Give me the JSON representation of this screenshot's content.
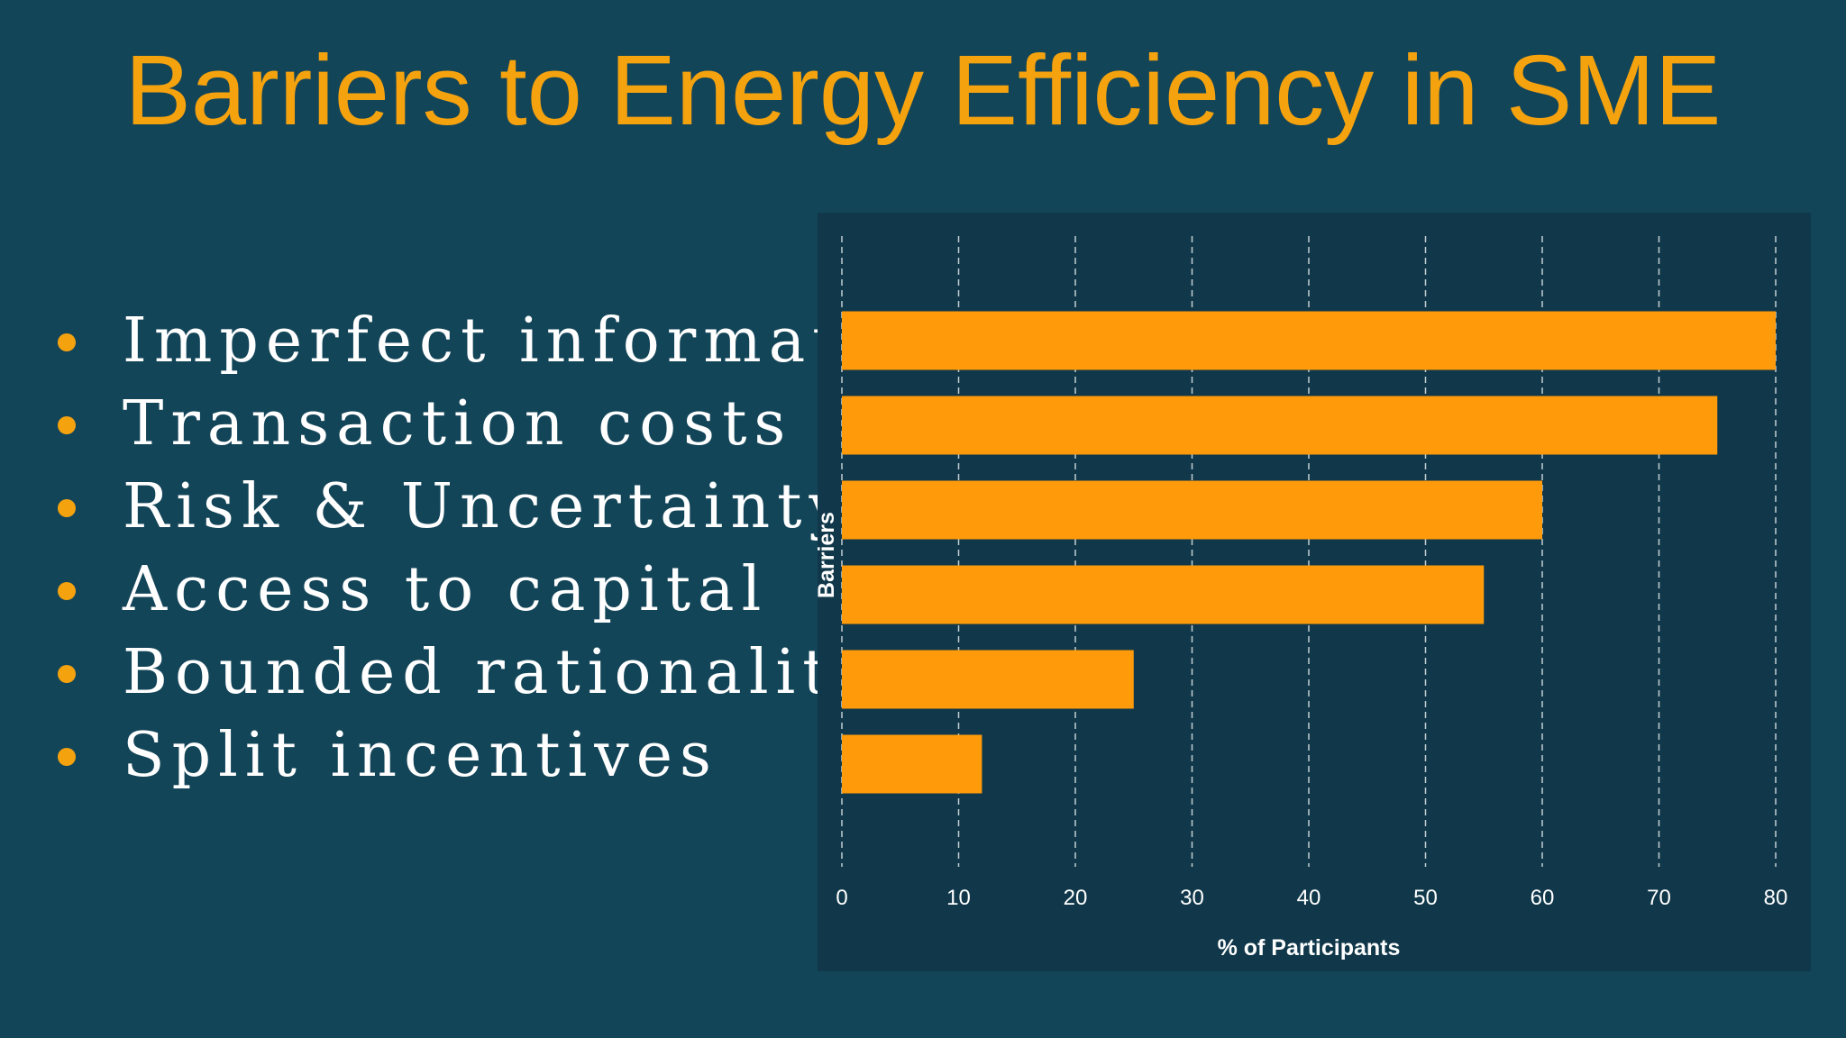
{
  "slide": {
    "title": "Barriers to Energy Efficiency in SME",
    "bullets": [
      "Imperfect information",
      "Transaction costs",
      "Risk & Uncertainty",
      "Access to capital",
      "Bounded rationality",
      "Split incentives"
    ]
  },
  "colors": {
    "background": "#134558",
    "chart_background": "#10384a",
    "accent": "#f5a20f",
    "bar": "#ff9a0a",
    "text": "#ffffff"
  },
  "chart_data": {
    "type": "bar",
    "orientation": "horizontal",
    "title": "",
    "xlabel": "% of Participants",
    "ylabel": "Barriers",
    "xlim": [
      0,
      80
    ],
    "xticks": [
      0,
      10,
      20,
      30,
      40,
      50,
      60,
      70,
      80
    ],
    "grid": "vertical dashed",
    "values": [
      80,
      75,
      60,
      55,
      25,
      12
    ]
  }
}
